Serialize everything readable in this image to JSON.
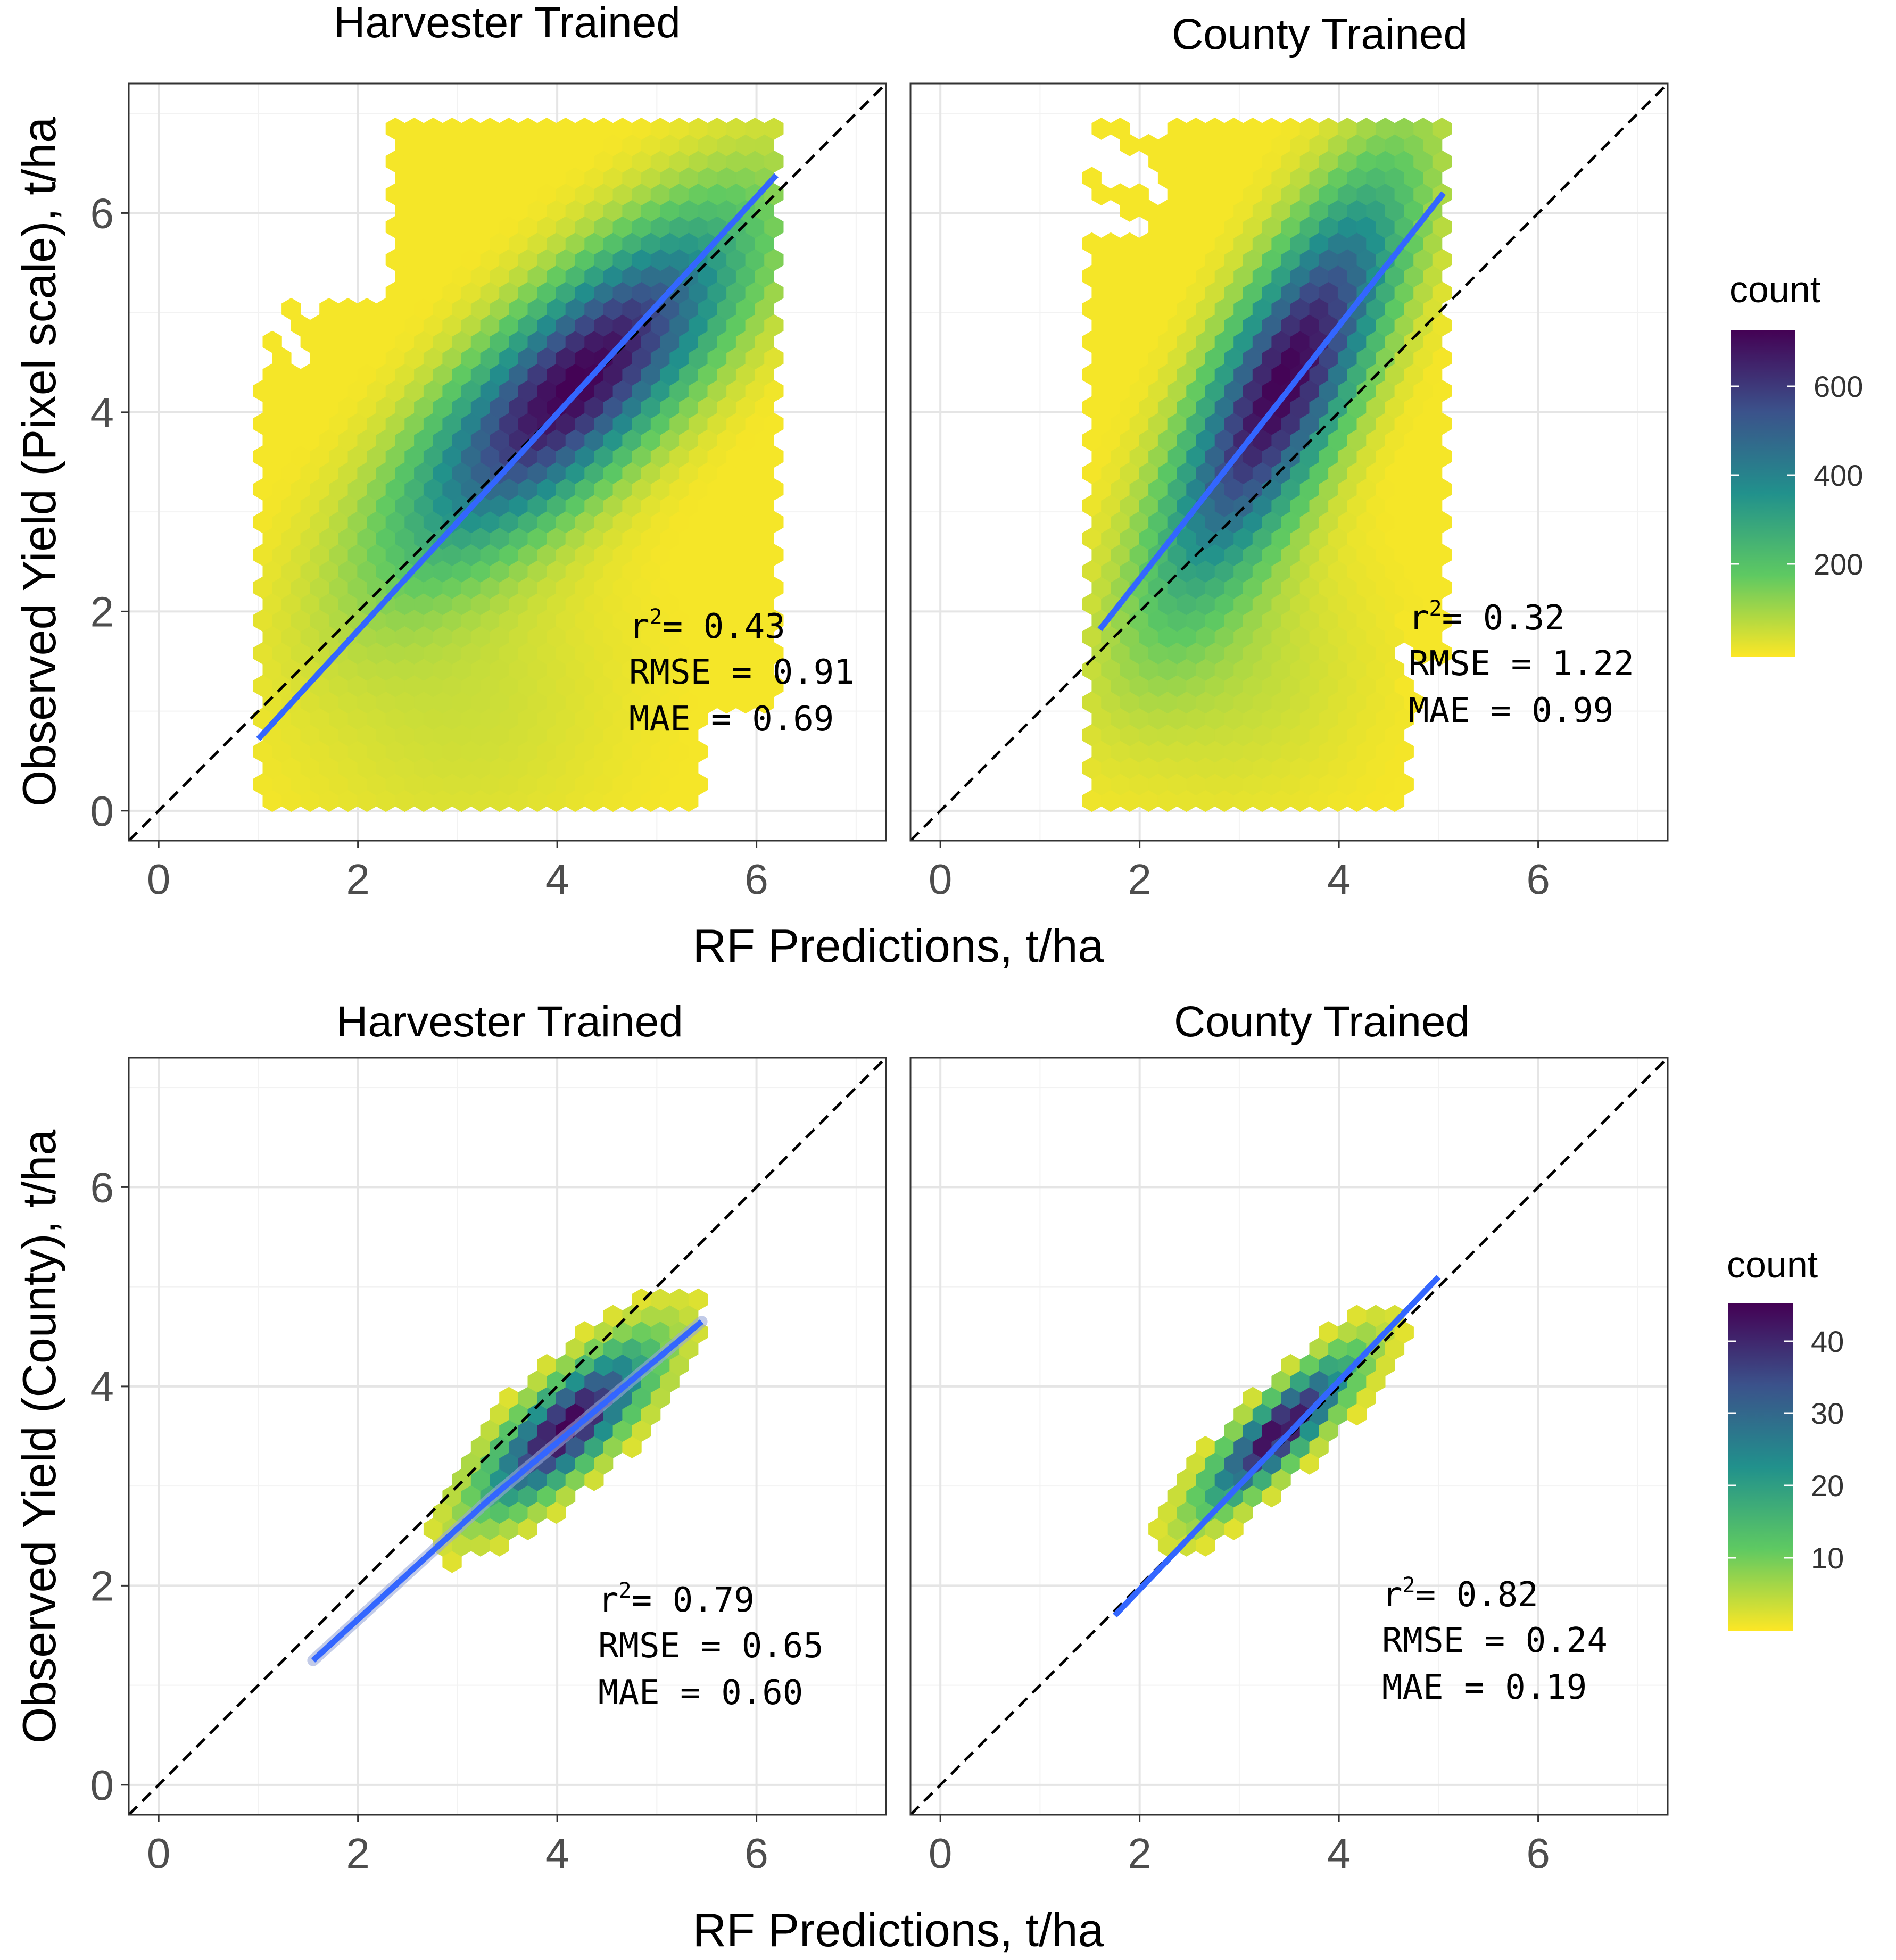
{
  "figure": {
    "x_axis_title": "RF Predictions, t/ha",
    "rows": [
      {
        "y_axis_title": "Observed Yield (Pixel scale), t/ha",
        "legend_title": "count",
        "legend_ticks": [
          "600",
          "400",
          "200"
        ]
      },
      {
        "y_axis_title": "Observed Yield (County), t/ha",
        "legend_title": "count",
        "legend_ticks": [
          "40",
          "30",
          "20",
          "10"
        ]
      }
    ]
  },
  "chart_data": [
    {
      "type": "hexbin",
      "title": "Harvester Trained",
      "xlabel": "RF Predictions, t/ha",
      "ylabel": "Observed Yield (Pixel scale), t/ha",
      "xlim": [
        -0.3,
        7.3
      ],
      "ylim": [
        -0.3,
        7.3
      ],
      "x_ticks": [
        "0",
        "2",
        "4",
        "6"
      ],
      "y_ticks": [
        "0",
        "2",
        "4",
        "6"
      ],
      "grid": true,
      "color_scale": "viridis (reversed: low=yellow, high=purple)",
      "count_range": [
        1,
        720
      ],
      "density_center": [
        4.2,
        4.3
      ],
      "identity_line": "dashed black (1:1)",
      "fit_line": {
        "x": [
          1.0,
          6.2
        ],
        "y": [
          0.72,
          6.38
        ],
        "color": "#3366ff"
      },
      "stats": {
        "r2_label": "r",
        "r2_value": "= 0.43",
        "rmse": "RMSE = 0.91",
        "mae": "MAE = 0.69"
      }
    },
    {
      "type": "hexbin",
      "title": "County Trained",
      "xlabel": "RF Predictions, t/ha",
      "ylabel": "Observed Yield (Pixel scale), t/ha",
      "xlim": [
        -0.3,
        7.3
      ],
      "ylim": [
        -0.3,
        7.3
      ],
      "x_ticks": [
        "0",
        "2",
        "4",
        "6"
      ],
      "y_ticks": [
        "0",
        "2",
        "4",
        "6"
      ],
      "grid": true,
      "color_scale": "viridis (reversed: low=yellow, high=purple)",
      "count_range": [
        1,
        720
      ],
      "density_center": [
        3.45,
        4.3
      ],
      "identity_line": "dashed black (1:1)",
      "fit_line": {
        "x": [
          1.6,
          5.05
        ],
        "y": [
          1.82,
          6.2
        ],
        "color": "#3366ff"
      },
      "stats": {
        "r2_label": "r",
        "r2_value": "= 0.32",
        "rmse": "RMSE = 1.22",
        "mae": "MAE = 0.99"
      }
    },
    {
      "type": "hexbin",
      "title": "Harvester Trained",
      "xlabel": "RF Predictions, t/ha",
      "ylabel": "Observed Yield (County), t/ha",
      "xlim": [
        -0.3,
        7.3
      ],
      "ylim": [
        -0.3,
        7.3
      ],
      "x_ticks": [
        "0",
        "2",
        "4",
        "6"
      ],
      "y_ticks": [
        "0",
        "2",
        "4",
        "6"
      ],
      "grid": true,
      "color_scale": "viridis (reversed: low=yellow, high=purple)",
      "count_range": [
        1,
        46
      ],
      "density_center": [
        4.1,
        3.6
      ],
      "identity_line": "dashed black (1:1)",
      "fit_line": {
        "x": [
          1.55,
          3.3,
          5.45
        ],
        "y": [
          1.25,
          2.85,
          4.65
        ],
        "color": "#3366ff"
      },
      "stats": {
        "r2_label": "r",
        "r2_value": "= 0.79",
        "rmse": "RMSE = 0.65",
        "mae": "MAE = 0.60"
      }
    },
    {
      "type": "hexbin",
      "title": "County Trained",
      "xlabel": "RF Predictions, t/ha",
      "ylabel": "Observed Yield (County), t/ha",
      "xlim": [
        -0.3,
        7.3
      ],
      "ylim": [
        -0.3,
        7.3
      ],
      "x_ticks": [
        "0",
        "2",
        "4",
        "6"
      ],
      "y_ticks": [
        "0",
        "2",
        "4",
        "6"
      ],
      "grid": true,
      "color_scale": "viridis (reversed: low=yellow, high=purple)",
      "count_range": [
        1,
        46
      ],
      "density_center": [
        3.4,
        3.55
      ],
      "identity_line": "dashed black (1:1)",
      "fit_line": {
        "x": [
          1.75,
          5.0
        ],
        "y": [
          1.7,
          5.1
        ],
        "color": "#3366ff"
      },
      "stats": {
        "r2_label": "r",
        "r2_value": "= 0.82",
        "rmse": "RMSE = 0.24",
        "mae": "MAE = 0.19"
      }
    }
  ]
}
